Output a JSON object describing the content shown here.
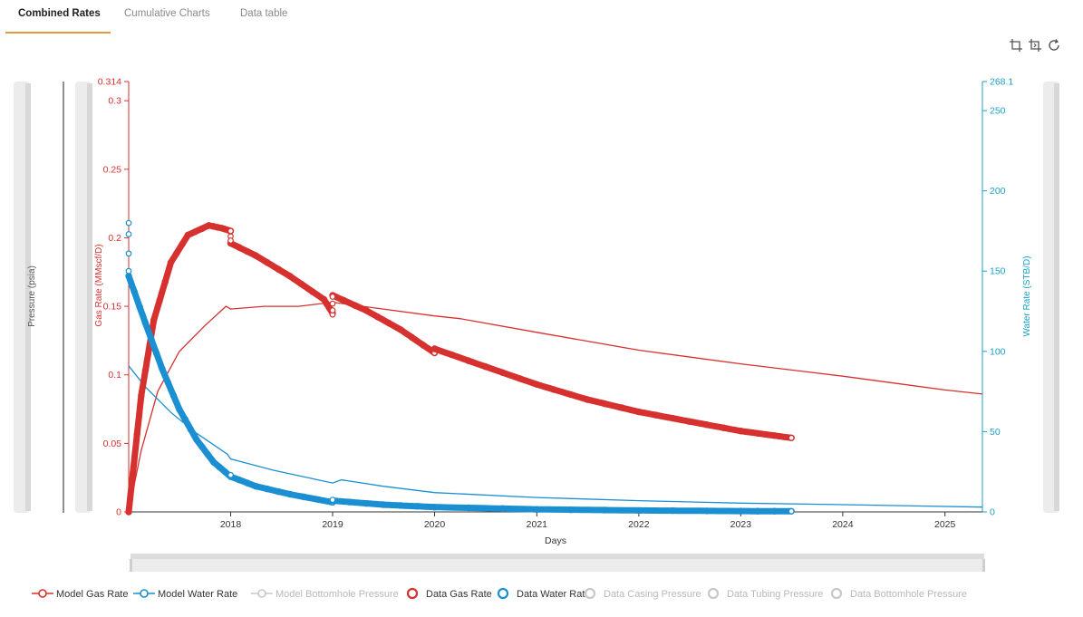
{
  "tabs": [
    {
      "label": "Combined Rates",
      "active": true
    },
    {
      "label": "Cumulative Charts",
      "active": false
    },
    {
      "label": "Data table",
      "active": false
    }
  ],
  "toolbar": {
    "icons": [
      "zoom-select-icon",
      "zoom-reset-icon",
      "restore-icon"
    ]
  },
  "colors": {
    "gas": "#d6312f",
    "water": "#1a8fd1",
    "axis_water": "#1aa0c4",
    "legend_off": "#c8c8c8",
    "slider": "#e2e2e2"
  },
  "chart_data": {
    "type": "line",
    "x_axis": {
      "label": "Days",
      "ticks": [
        "2018",
        "2019",
        "2020",
        "2021",
        "2022",
        "2023",
        "2024",
        "2025"
      ],
      "range": [
        "2017-01-01",
        "2025-05-15"
      ]
    },
    "y_axis_left": {
      "label": "Gas Rate (MMscf/D)",
      "range": [
        0,
        0.314
      ],
      "ticks": [
        "0",
        "0.05",
        "0.1",
        "0.15",
        "0.2",
        "0.25",
        "0.3",
        "0.314"
      ]
    },
    "y_axis_right": {
      "label": "Water Rate (STB/D)",
      "range": [
        0,
        268.1
      ],
      "ticks": [
        "0",
        "50",
        "100",
        "150",
        "200",
        "250",
        "268.1"
      ]
    },
    "y_axis_pressure": {
      "label": "Pressure (psia)"
    },
    "grid": false,
    "legend_position": "bottom",
    "series": [
      {
        "name": "Model Gas Rate",
        "axis": "left",
        "visible": true,
        "style": "line",
        "points": [
          [
            "2017-01-01",
            0.0
          ],
          [
            "2017-02-15",
            0.045
          ],
          [
            "2017-04-15",
            0.088
          ],
          [
            "2017-07-01",
            0.117
          ],
          [
            "2017-10-01",
            0.136
          ],
          [
            "2017-12-15",
            0.15
          ],
          [
            "2018-01-01",
            0.148
          ],
          [
            "2018-05-01",
            0.15
          ],
          [
            "2018-09-01",
            0.15
          ],
          [
            "2019-01-01",
            0.153
          ],
          [
            "2019-07-01",
            0.148
          ],
          [
            "2020-01-01",
            0.143
          ],
          [
            "2020-04-01",
            0.141
          ],
          [
            "2021-01-01",
            0.131
          ],
          [
            "2022-01-01",
            0.118
          ],
          [
            "2023-01-01",
            0.108
          ],
          [
            "2024-01-01",
            0.099
          ],
          [
            "2025-01-01",
            0.089
          ],
          [
            "2025-05-15",
            0.086
          ]
        ]
      },
      {
        "name": "Model Water Rate",
        "axis": "right",
        "visible": true,
        "style": "line",
        "points": [
          [
            "2017-01-01",
            91
          ],
          [
            "2017-03-01",
            78
          ],
          [
            "2017-06-01",
            62
          ],
          [
            "2017-09-01",
            49
          ],
          [
            "2017-12-20",
            36
          ],
          [
            "2018-01-01",
            33
          ],
          [
            "2018-06-01",
            26
          ],
          [
            "2019-01-01",
            18
          ],
          [
            "2019-02-01",
            20
          ],
          [
            "2019-07-01",
            16
          ],
          [
            "2020-01-01",
            12
          ],
          [
            "2021-01-01",
            9
          ],
          [
            "2022-01-01",
            7
          ],
          [
            "2023-01-01",
            5.5
          ],
          [
            "2024-01-01",
            4.5
          ],
          [
            "2025-05-15",
            3
          ]
        ]
      },
      {
        "name": "Model Bottomhole Pressure",
        "axis": "pressure",
        "visible": false,
        "style": "line",
        "points": []
      },
      {
        "name": "Data Gas Rate",
        "axis": "left",
        "visible": true,
        "style": "markers",
        "segments": [
          [
            [
              "2017-01-01",
              0.0
            ],
            [
              "2017-02-15",
              0.085
            ],
            [
              "2017-04-01",
              0.14
            ],
            [
              "2017-06-01",
              0.182
            ],
            [
              "2017-08-01",
              0.202
            ],
            [
              "2017-10-15",
              0.209
            ],
            [
              "2017-12-01",
              0.207
            ],
            [
              "2018-01-01",
              0.205
            ]
          ],
          [
            [
              "2018-01-01",
              0.196
            ],
            [
              "2018-04-01",
              0.187
            ],
            [
              "2018-08-01",
              0.172
            ],
            [
              "2018-12-01",
              0.155
            ],
            [
              "2019-01-01",
              0.145
            ]
          ],
          [
            [
              "2019-01-01",
              0.158
            ],
            [
              "2019-05-01",
              0.147
            ],
            [
              "2019-09-01",
              0.133
            ],
            [
              "2020-01-01",
              0.116
            ]
          ],
          [
            [
              "2020-01-01",
              0.119
            ],
            [
              "2020-07-01",
              0.106
            ],
            [
              "2021-01-01",
              0.093
            ],
            [
              "2021-07-01",
              0.082
            ],
            [
              "2022-01-01",
              0.073
            ],
            [
              "2022-07-01",
              0.066
            ],
            [
              "2023-01-01",
              0.059
            ],
            [
              "2023-07-01",
              0.054
            ]
          ]
        ],
        "extra_points": [
          [
            "2018-01-01",
            0.201
          ],
          [
            "2018-01-01",
            0.198
          ],
          [
            "2019-01-01",
            0.144
          ],
          [
            "2019-01-01",
            0.147
          ],
          [
            "2019-01-01",
            0.152
          ],
          [
            "2019-01-01",
            0.157
          ]
        ]
      },
      {
        "name": "Data Water Rate",
        "axis": "right",
        "visible": true,
        "style": "markers",
        "segments": [
          [
            [
              "2017-01-01",
              147
            ],
            [
              "2017-03-01",
              118
            ],
            [
              "2017-05-01",
              89
            ],
            [
              "2017-07-01",
              64
            ],
            [
              "2017-09-01",
              45
            ],
            [
              "2017-11-01",
              31
            ],
            [
              "2018-01-01",
              22
            ]
          ],
          [
            [
              "2018-01-01",
              22
            ],
            [
              "2018-04-01",
              16
            ],
            [
              "2018-08-01",
              11
            ],
            [
              "2019-01-01",
              6
            ]
          ],
          [
            [
              "2019-01-01",
              7
            ],
            [
              "2019-07-01",
              4.5
            ],
            [
              "2020-01-01",
              3
            ],
            [
              "2021-01-01",
              1.6
            ],
            [
              "2022-01-01",
              0.9
            ],
            [
              "2023-01-01",
              0.5
            ],
            [
              "2023-07-01",
              0.4
            ]
          ]
        ],
        "extra_points": [
          [
            "2017-01-01",
            180
          ],
          [
            "2017-01-01",
            173
          ],
          [
            "2017-01-01",
            161
          ],
          [
            "2017-01-01",
            150
          ],
          [
            "2018-01-01",
            23
          ],
          [
            "2019-01-01",
            7.5
          ]
        ]
      },
      {
        "name": "Data Casing Pressure",
        "axis": "pressure",
        "visible": false,
        "style": "markers",
        "points": []
      },
      {
        "name": "Data Tubing Pressure",
        "axis": "pressure",
        "visible": false,
        "style": "markers",
        "points": []
      },
      {
        "name": "Data Bottomhole Pressure",
        "axis": "pressure",
        "visible": false,
        "style": "markers",
        "points": []
      }
    ]
  }
}
